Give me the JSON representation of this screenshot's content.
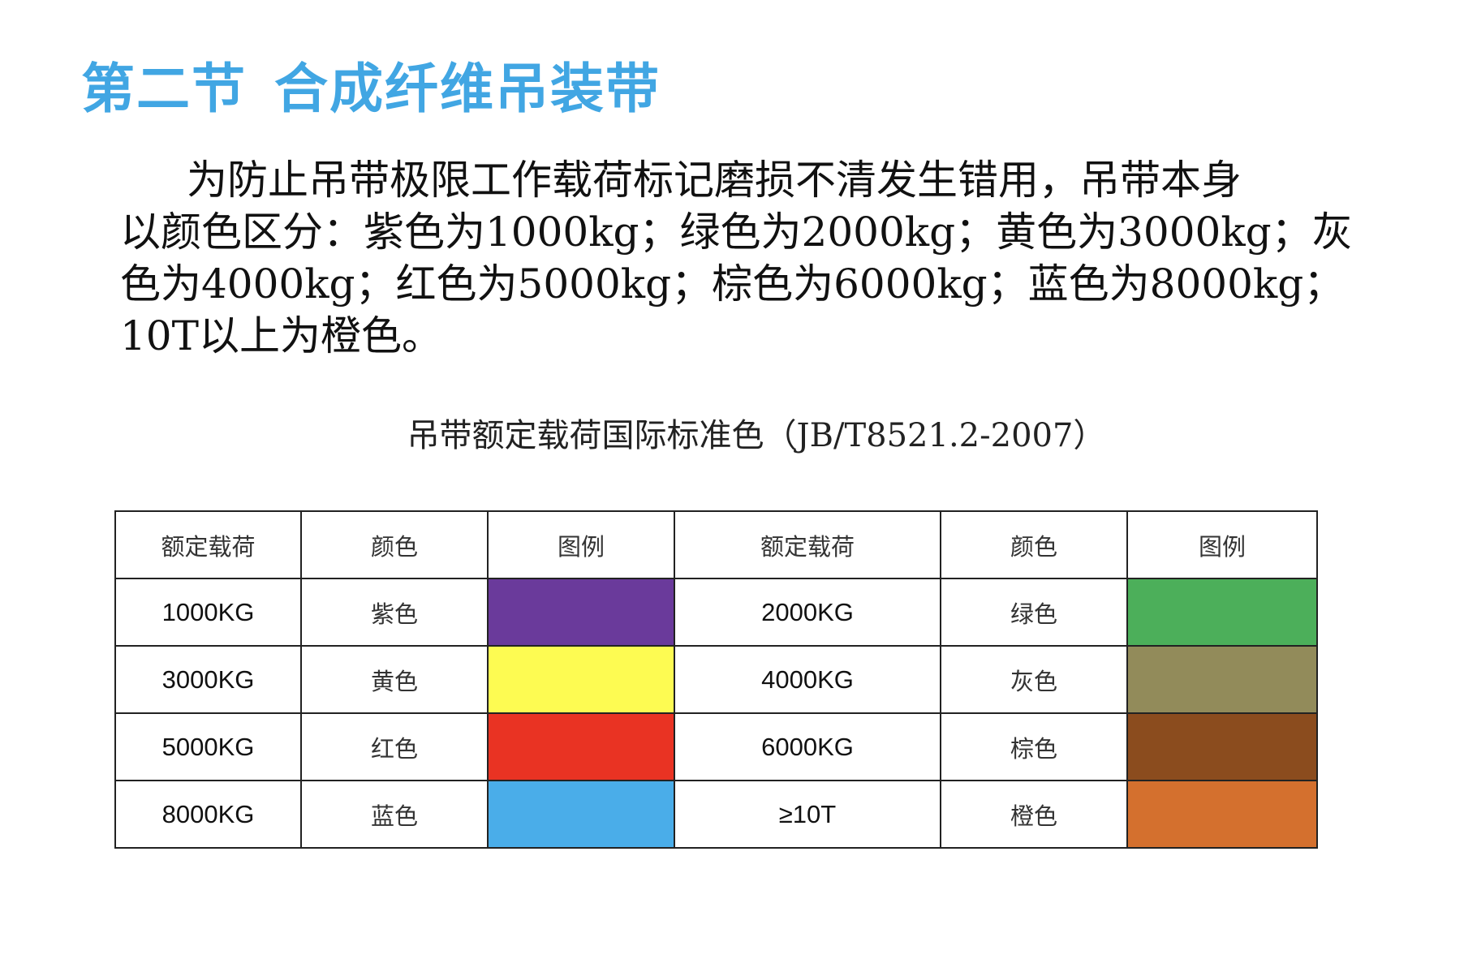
{
  "heading": {
    "section": "第二节",
    "title": "合成纤维吊装带"
  },
  "paragraph": {
    "lines": [
      "为防止吊带极限工作载荷标记磨损不清发生错用，吊带本身",
      "以颜色区分：紫色为1000kg；绿色为2000kg；黄色为3000kg；灰",
      "色为4000kg；红色为5000kg；棕色为6000kg；蓝色为8000kg；",
      "10T以上为橙色。"
    ]
  },
  "table_title": "吊带额定载荷国际标准色（JB/T8521.2-2007）",
  "table": {
    "headers": [
      "额定载荷",
      "颜色",
      "图例",
      "额定载荷",
      "颜色",
      "图例"
    ],
    "rows": [
      {
        "left": {
          "load": "1000KG",
          "color_name": "紫色",
          "swatch_color": "#6a3a9b"
        },
        "right": {
          "load": "2000KG",
          "color_name": "绿色",
          "swatch_color": "#4caf5a"
        }
      },
      {
        "left": {
          "load": "3000KG",
          "color_name": "黄色",
          "swatch_color": "#fdfb52"
        },
        "right": {
          "load": "4000KG",
          "color_name": "灰色",
          "swatch_color": "#928b5a"
        }
      },
      {
        "left": {
          "load": "5000KG",
          "color_name": "红色",
          "swatch_color": "#e93323"
        },
        "right": {
          "load": "6000KG",
          "color_name": "棕色",
          "swatch_color": "#8b4c1e"
        }
      },
      {
        "left": {
          "load": "8000KG",
          "color_name": "蓝色",
          "swatch_color": "#4aade9"
        },
        "right": {
          "load": "≥10T",
          "color_name": "橙色",
          "swatch_color": "#d4702e"
        }
      }
    ]
  }
}
